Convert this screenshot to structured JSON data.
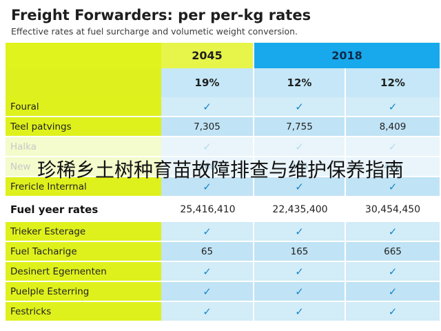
{
  "title": "Freight Forwarders: per per-kg rates",
  "subtitle": "Effective rates at fuel surcharge and volumetic weight conversion.",
  "header": {
    "year_a": "2045",
    "year_b": "2018",
    "pct": [
      "19%",
      "12%",
      "12%"
    ]
  },
  "check_icon": "✓",
  "rows_top": [
    {
      "label": "Foural",
      "values": [
        "✓",
        "✓",
        "✓"
      ],
      "checks": [
        true,
        true,
        true
      ]
    },
    {
      "label": "Teel patvings",
      "values": [
        "7,305",
        "7,755",
        "8,409"
      ],
      "checks": [
        false,
        false,
        false
      ]
    },
    {
      "label": "Halka",
      "values": [
        "✓",
        "✓",
        "✓"
      ],
      "checks": [
        true,
        true,
        true
      ]
    },
    {
      "label": "New",
      "values": [
        "460",
        "405",
        "460"
      ],
      "checks": [
        false,
        false,
        false
      ]
    },
    {
      "label": "Frericle Interrnal",
      "values": [
        "✓",
        "✓",
        "✓"
      ],
      "checks": [
        true,
        true,
        true
      ]
    }
  ],
  "fuel": {
    "label": "Fuel yeer rates",
    "values": [
      "25,416,410",
      "22,435,400",
      "30,454,450"
    ]
  },
  "rows_bottom": [
    {
      "label": "Trieker Esterage",
      "values": [
        "✓",
        "✓",
        "✓"
      ]
    },
    {
      "label": "Fuel Tacharige",
      "values": [
        "65",
        "165",
        "665"
      ]
    },
    {
      "label": "Desinert Egernenten",
      "values": [
        "✓",
        "✓",
        "✓"
      ]
    },
    {
      "label": "Puelple Esterring",
      "values": [
        "✓",
        "✓",
        "✓"
      ]
    },
    {
      "label": "Festricks",
      "values": [
        "✓",
        "✓",
        "✓"
      ]
    }
  ],
  "overlay_text": "珍稀乡土树种育苗故障排查与维护保养指南",
  "colors": {
    "accent_yellow": "#dff11c",
    "accent_blue": "#17a9ec",
    "cell_blue": "#d2ecf8",
    "check_blue": "#1687c9"
  }
}
